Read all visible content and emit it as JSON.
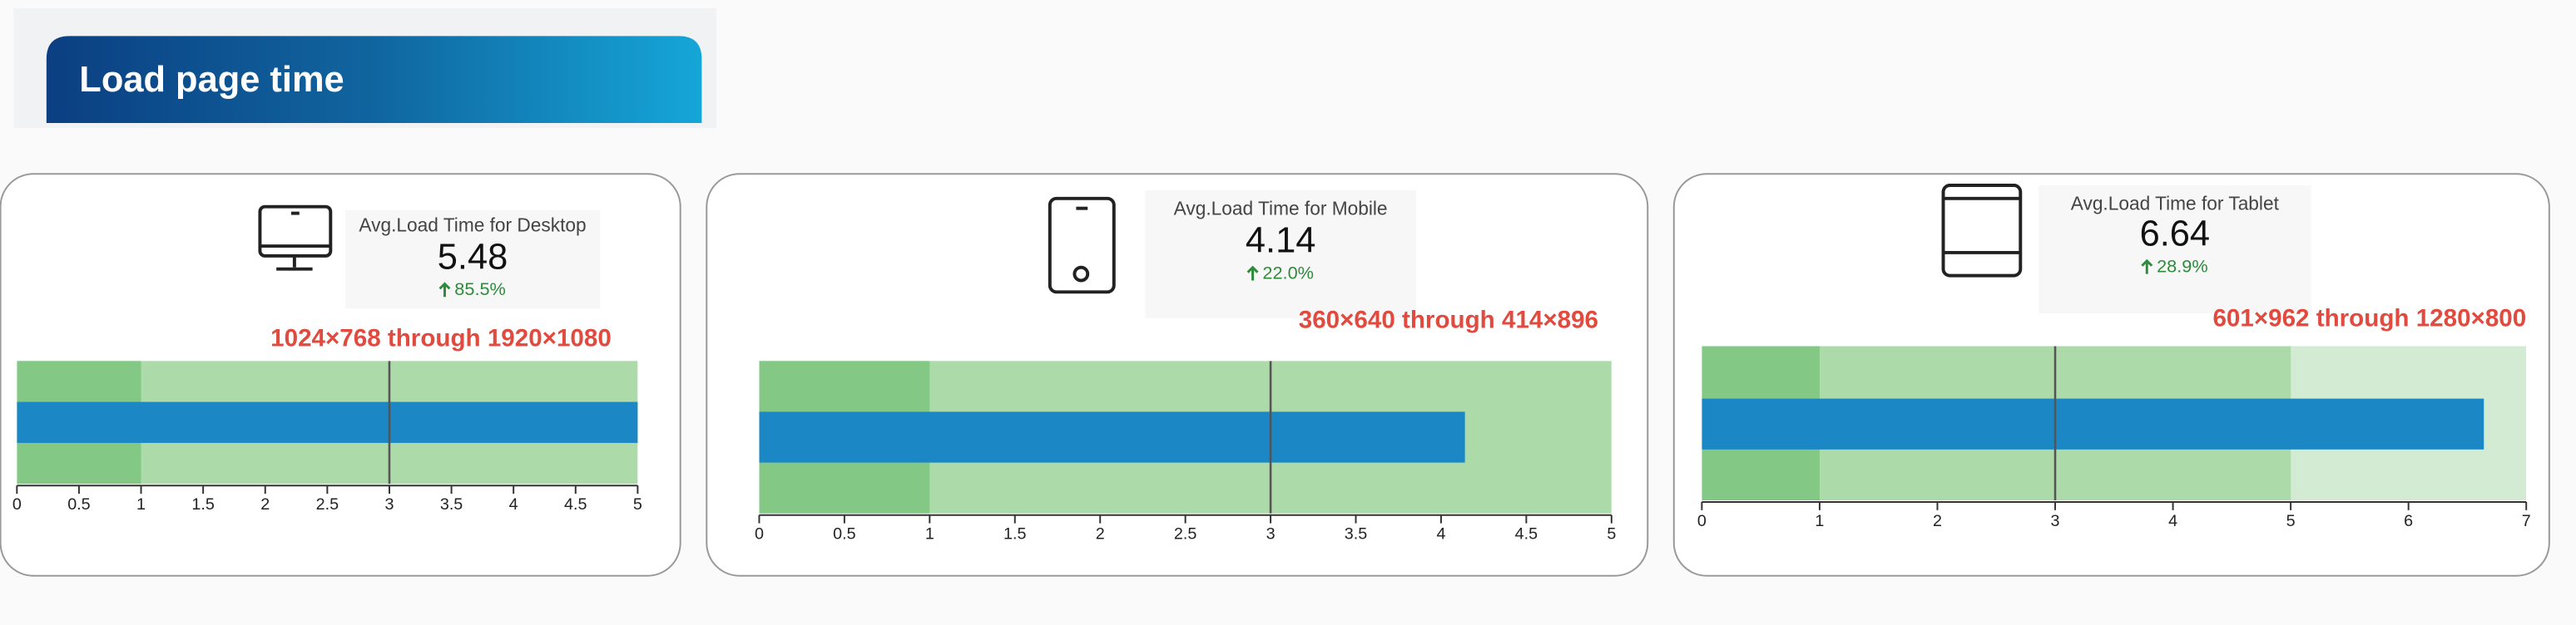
{
  "header": {
    "title": "Load page time"
  },
  "chart_data": [
    {
      "type": "bullet",
      "label": "Avg.Load Time for Desktop",
      "value": 5.48,
      "change": "85.5%",
      "subtitle": "1024×768 through 1920×1080",
      "target": 3,
      "ranges": [
        1,
        5
      ],
      "range_colors": [
        "#84c886",
        "#acdaa9"
      ],
      "color": "#1b87c5",
      "xlim": [
        0,
        5
      ],
      "xticks": [
        0,
        0.5,
        1,
        1.5,
        2,
        2.5,
        3,
        3.5,
        4,
        4.5,
        5
      ]
    },
    {
      "type": "bullet",
      "label": "Avg.Load Time for Mobile",
      "value": 4.14,
      "change": "22.0%",
      "subtitle": "360×640 through 414×896",
      "target": 3,
      "ranges": [
        1,
        5
      ],
      "range_colors": [
        "#84c886",
        "#acdaa9"
      ],
      "color": "#1b87c5",
      "xlim": [
        0,
        5
      ],
      "xticks": [
        0,
        0.5,
        1,
        1.5,
        2,
        2.5,
        3,
        3.5,
        4,
        4.5,
        5
      ]
    },
    {
      "type": "bullet",
      "label": "Avg.Load Time for Tablet",
      "value": 6.64,
      "change": "28.9%",
      "subtitle": "601×962 through 1280×800",
      "target": 3,
      "ranges": [
        1,
        5,
        7
      ],
      "range_colors": [
        "#84c886",
        "#acdaa9",
        "#d3ebd2"
      ],
      "color": "#1b87c5",
      "xlim": [
        0,
        7
      ],
      "xticks": [
        0,
        1,
        2,
        3,
        4,
        5,
        6,
        7
      ]
    }
  ]
}
